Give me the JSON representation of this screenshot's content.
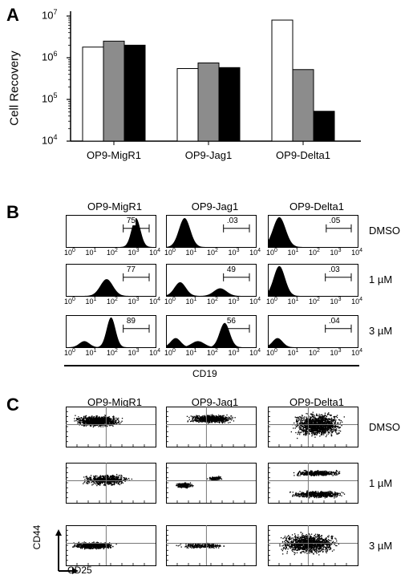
{
  "panels": {
    "a": "A",
    "b": "B",
    "c": "C"
  },
  "panel_a": {
    "chart_data": {
      "type": "bar",
      "yscale": "log",
      "ylabel": "Cell Recovery",
      "ylim": [
        10000,
        10000000
      ],
      "yticks": [
        "10",
        "10",
        "10",
        "10"
      ],
      "ytick_exps": [
        "4",
        "5",
        "6",
        "7"
      ],
      "categories": [
        "OP9-MigR1",
        "OP9-Jag1",
        "OP9-Delta1"
      ],
      "series": [
        {
          "color": "#ffffff",
          "values": [
            1800000,
            550000,
            8000000
          ]
        },
        {
          "color": "#8c8c8c",
          "values": [
            2500000,
            750000,
            520000
          ]
        },
        {
          "color": "#000000",
          "values": [
            2000000,
            580000,
            52000
          ]
        }
      ]
    }
  },
  "panel_b": {
    "col_headers": [
      "OP9-MigR1",
      "OP9-Jag1",
      "OP9-Delta1"
    ],
    "row_labels": [
      "DMSO",
      "1 µM",
      "3 µM"
    ],
    "xlabel": "CD19",
    "tick_base": "10",
    "tick_exps": [
      "0",
      "1",
      "2",
      "3",
      "4"
    ],
    "percentages": [
      [
        "75",
        ".03",
        ".05"
      ],
      [
        "77",
        "49",
        ".03"
      ],
      [
        "89",
        "56",
        ".04"
      ]
    ]
  },
  "panel_c": {
    "col_headers": [
      "OP9-MigR1",
      "OP9-Jag1",
      "OP9-Delta1"
    ],
    "row_labels": [
      "DMSO",
      "1 µM",
      "3 µM"
    ],
    "ylabel": "CD44",
    "xlabel": "CD25"
  }
}
